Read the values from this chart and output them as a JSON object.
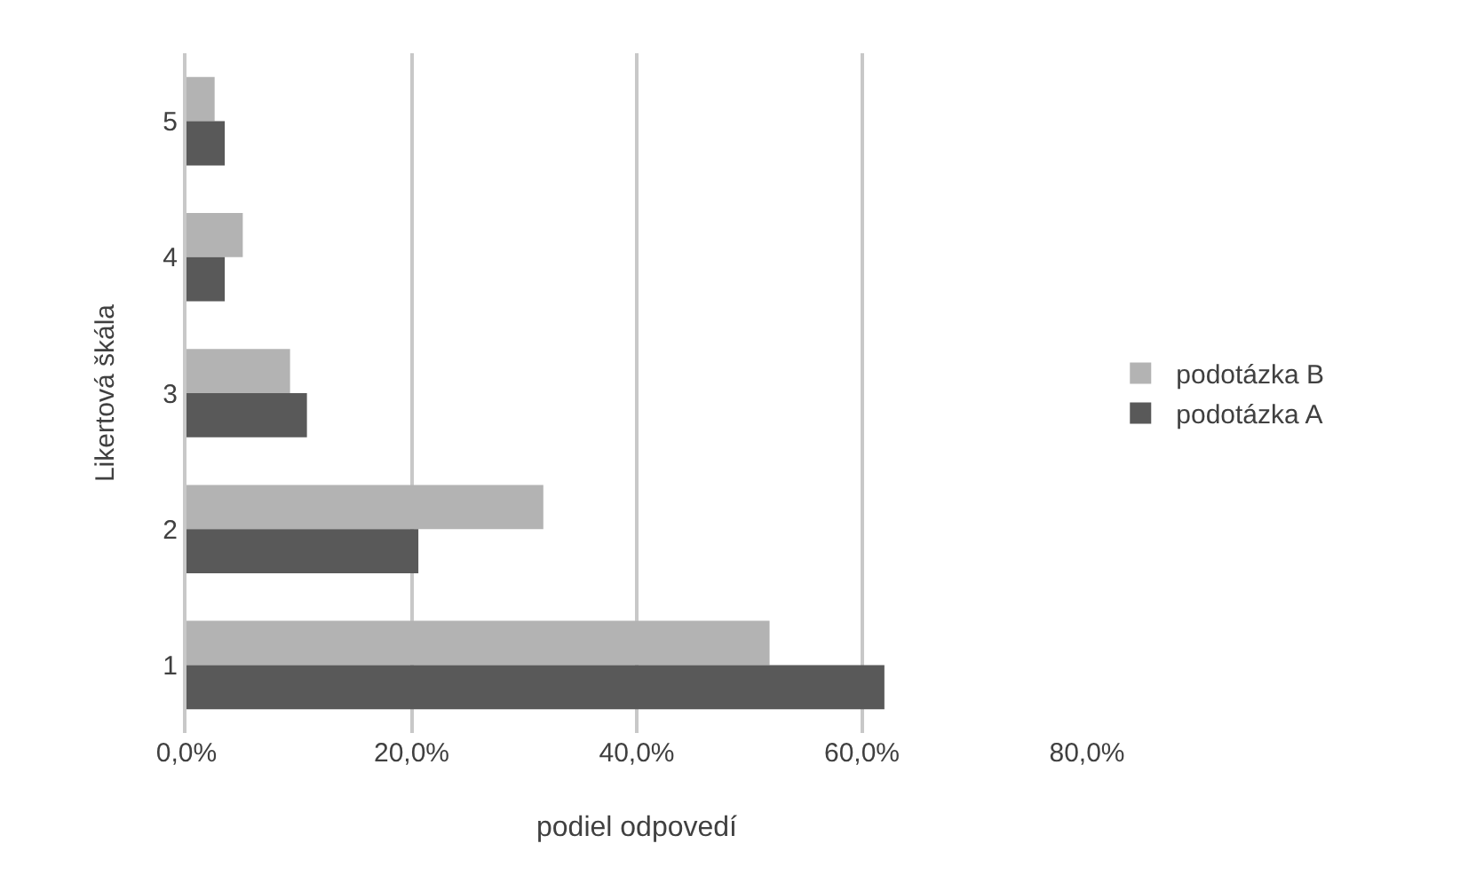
{
  "chart_data": {
    "type": "bar",
    "orientation": "horizontal",
    "categories": [
      "5",
      "4",
      "3",
      "2",
      "1"
    ],
    "series": [
      {
        "name": "podotázka B",
        "color": "#b3b3b3",
        "values": [
          2.5,
          5.0,
          9.2,
          31.7,
          51.8
        ]
      },
      {
        "name": "podotázka A",
        "color": "#595959",
        "values": [
          3.4,
          3.4,
          10.7,
          20.6,
          62.0
        ]
      }
    ],
    "xlabel": "podiel odpovedí",
    "ylabel": "Likertová škála",
    "xlim": [
      0,
      80
    ],
    "xticks": [
      {
        "value": 0,
        "label": "0,0%"
      },
      {
        "value": 20,
        "label": "20,0%"
      },
      {
        "value": 40,
        "label": "40,0%"
      },
      {
        "value": 60,
        "label": "60,0%"
      },
      {
        "value": 80,
        "label": "80,0%"
      }
    ],
    "grid": "x",
    "legend": "right"
  }
}
